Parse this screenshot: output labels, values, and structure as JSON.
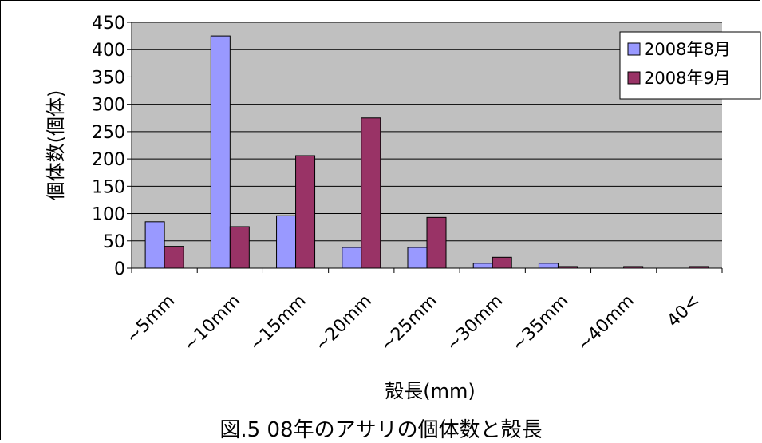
{
  "chart_data": {
    "type": "bar",
    "title": "",
    "caption": "図.5 08年のアサリの個体数と殻長",
    "xlabel": "殻長(mm)",
    "ylabel": "個体数(個体)",
    "categories": [
      "~5mm",
      "~10mm",
      "~15mm",
      "~20mm",
      "~25mm",
      "~30mm",
      "~35mm",
      "~40mm",
      "40<"
    ],
    "series": [
      {
        "name": "2008年8月",
        "values": [
          85,
          425,
          96,
          38,
          38,
          9,
          9,
          0,
          0
        ],
        "color": "#9999FF"
      },
      {
        "name": "2008年9月",
        "values": [
          40,
          76,
          206,
          275,
          93,
          20,
          3,
          3,
          3
        ],
        "color": "#993366"
      }
    ],
    "ylim": [
      0,
      450
    ],
    "yticks": [
      0,
      50,
      100,
      150,
      200,
      250,
      300,
      350,
      400,
      450
    ],
    "grid": true,
    "plot_background": "#C0C0C0",
    "legend_position": "right"
  }
}
